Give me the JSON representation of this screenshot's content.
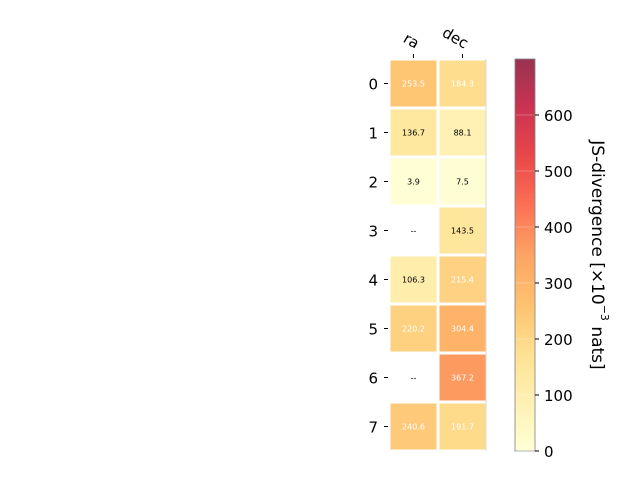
{
  "chart_data": {
    "type": "heatmap",
    "columns": [
      "ra",
      "dec"
    ],
    "rows": [
      "0",
      "1",
      "2",
      "3",
      "4",
      "5",
      "6",
      "7"
    ],
    "values": [
      [
        253.5,
        184.3
      ],
      [
        136.7,
        88.1
      ],
      [
        3.9,
        7.5
      ],
      [
        null,
        143.5
      ],
      [
        106.3,
        215.4
      ],
      [
        220.2,
        304.4
      ],
      [
        null,
        367.2
      ],
      [
        240.6,
        191.7
      ]
    ],
    "cell_labels": [
      [
        "253.5",
        "184.3"
      ],
      [
        "136.7",
        "88.1"
      ],
      [
        "3.9",
        "7.5"
      ],
      [
        "--",
        "143.5"
      ],
      [
        "106.3",
        "215.4"
      ],
      [
        "220.2",
        "304.4"
      ],
      [
        "--",
        "367.2"
      ],
      [
        "240.6",
        "191.7"
      ]
    ],
    "colorbar": {
      "label_main": "JS-divergence [×10",
      "label_sup": "−3",
      "label_end": " nats]",
      "range": [
        0,
        700
      ],
      "ticks": [
        "0",
        "100",
        "200",
        "300",
        "400",
        "500",
        "600"
      ],
      "colormap": "YlOrRd",
      "colors": [
        "#ffffcc",
        "#ffeda0",
        "#fed976",
        "#feb24c",
        "#fd8d3c",
        "#fc4e2a",
        "#e31a1c",
        "#bd0026",
        "#800026"
      ]
    },
    "cell_alpha": 0.8
  }
}
